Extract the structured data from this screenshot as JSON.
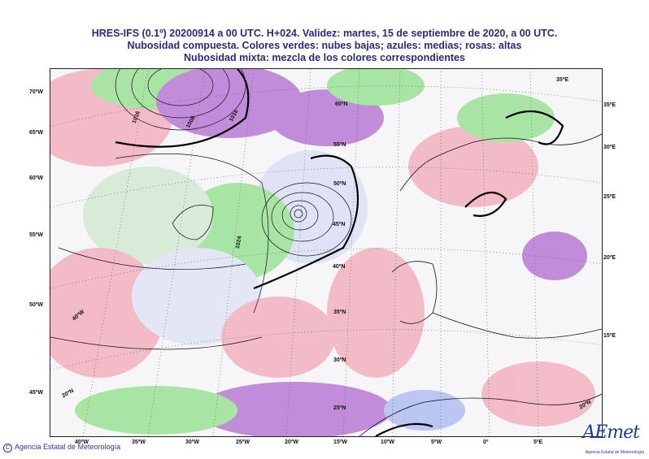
{
  "title": {
    "line1": "HRES-IFS (0.1º) 20200914 a 00 UTC.  H+024. Validez: martes, 15 de septiembre de 2020,  a  00 UTC.",
    "line2": "Nubosidad compuesta. Colores verdes: nubes bajas; azules: medias; rosas: altas",
    "line3": "Nubosidad mixta: mezcla de los colores correspondientes"
  },
  "left_labels": [
    "70ºW",
    "65ºW",
    "60ºW",
    "55ºW",
    "50ºW",
    "45ºW"
  ],
  "right_labels": [
    "35ºE",
    "30ºE",
    "25ºE",
    "20ºE",
    "15ºE"
  ],
  "bottom_labels": [
    "40ºW",
    "35ºW",
    "30ºW",
    "25ºW",
    "20ºW",
    "15ºW",
    "10ºW",
    "5ºW",
    "0º",
    "5ºE"
  ],
  "inner_lat_labels": [
    "60ºN",
    "55ºN",
    "50ºN",
    "45ºN",
    "40ºN",
    "35ºN",
    "30ºN",
    "25ºN"
  ],
  "inner_misc_labels": [
    "20ºN",
    "20ºN",
    "40ºW",
    "35ºE"
  ],
  "isobar_labels": [
    "1008",
    "1016",
    "1024",
    "1016"
  ],
  "footer": {
    "copyright_symbol": "C",
    "org": "Agencia Estatal de Meteorología"
  },
  "logo": {
    "text": "AEmet",
    "subtext": "Agencia Estatal de Meteorología"
  },
  "colors": {
    "low": "#8fe08a",
    "mid": "#a9b7f0",
    "high": "#f2a8b8",
    "mixed": "#b06ad0",
    "title": "#2a2a7a"
  }
}
